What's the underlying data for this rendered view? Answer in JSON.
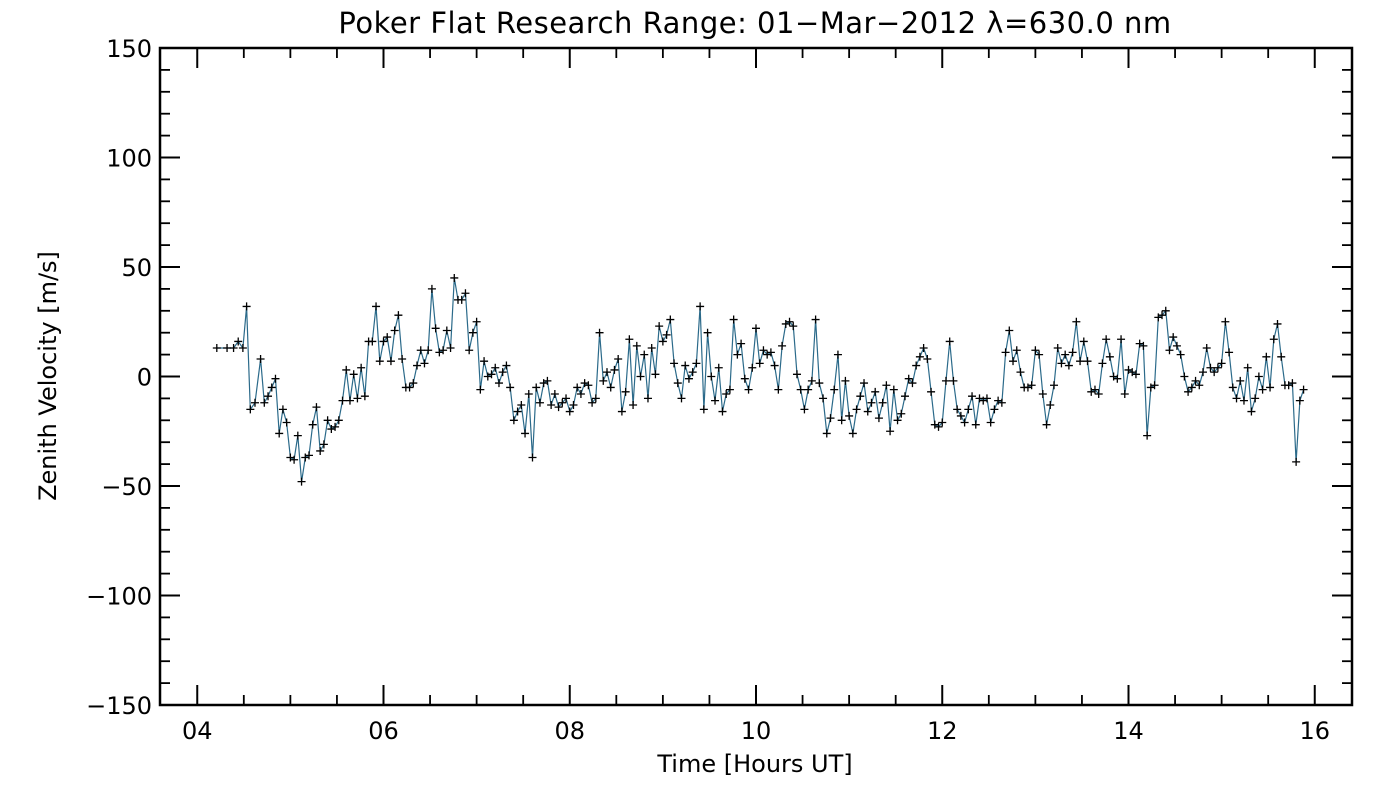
{
  "chart_data": {
    "type": "line",
    "title": "Poker Flat Research Range: 01−Mar−2012 λ=630.0 nm",
    "xlabel": "Time [Hours UT]",
    "ylabel": "Zenith Velocity [m/s]",
    "xlim": [
      3.6,
      16.4
    ],
    "ylim": [
      -150,
      150
    ],
    "xticks": [
      4,
      6,
      8,
      10,
      12,
      14,
      16
    ],
    "xtick_labels": [
      "04",
      "06",
      "08",
      "10",
      "12",
      "14",
      "16"
    ],
    "yticks": [
      -150,
      -100,
      -50,
      0,
      50,
      100,
      150
    ],
    "ytick_labels": [
      "−150",
      "−100",
      "−50",
      "0",
      "50",
      "100",
      "150"
    ],
    "grid": false,
    "line_color": "#2b6a8a",
    "marker": "plus",
    "marker_color": "#000000",
    "series": [
      {
        "x": [
          4.21,
          4.32,
          4.39,
          4.44,
          4.49,
          4.53,
          4.57,
          4.62,
          4.68,
          4.72,
          4.76,
          4.8,
          4.84,
          4.88,
          4.92,
          4.96,
          5.0,
          5.04,
          5.08,
          5.12,
          5.16,
          5.2,
          5.24,
          5.28,
          5.32,
          5.36,
          5.4,
          5.44,
          5.48,
          5.52,
          5.56,
          5.6,
          5.64,
          5.68,
          5.72,
          5.76,
          5.8,
          5.84,
          5.88,
          5.92,
          5.96,
          6.0,
          6.04,
          6.08,
          6.12,
          6.16,
          6.2,
          6.24,
          6.28,
          6.32,
          6.36,
          6.4,
          6.44,
          6.48,
          6.52,
          6.56,
          6.6,
          6.64,
          6.68,
          6.72,
          6.76,
          6.8,
          6.84,
          6.88,
          6.92,
          6.96,
          7.0,
          7.04,
          7.08,
          7.12,
          7.16,
          7.2,
          7.24,
          7.28,
          7.32,
          7.36,
          7.4,
          7.44,
          7.48,
          7.52,
          7.56,
          7.6,
          7.64,
          7.68,
          7.72,
          7.76,
          7.8,
          7.84,
          7.88,
          7.92,
          7.96,
          8.0,
          8.04,
          8.08,
          8.12,
          8.16,
          8.2,
          8.24,
          8.28,
          8.32,
          8.36,
          8.4,
          8.44,
          8.48,
          8.52,
          8.56,
          8.6,
          8.64,
          8.68,
          8.72,
          8.76,
          8.8,
          8.84,
          8.88,
          8.92,
          8.96,
          9.0,
          9.04,
          9.08,
          9.12,
          9.16,
          9.2,
          9.24,
          9.28,
          9.32,
          9.36,
          9.4,
          9.44,
          9.48,
          9.52,
          9.56,
          9.6,
          9.64,
          9.68,
          9.72,
          9.76,
          9.8,
          9.84,
          9.88,
          9.92,
          9.96,
          10.0,
          10.04,
          10.08,
          10.12,
          10.16,
          10.2,
          10.24,
          10.28,
          10.32,
          10.36,
          10.4,
          10.44,
          10.48,
          10.52,
          10.56,
          10.6,
          10.64,
          10.68,
          10.72,
          10.76,
          10.8,
          10.84,
          10.88,
          10.92,
          10.96,
          11.0,
          11.04,
          11.08,
          11.12,
          11.16,
          11.2,
          11.24,
          11.28,
          11.32,
          11.36,
          11.4,
          11.44,
          11.48,
          11.52,
          11.56,
          11.6,
          11.64,
          11.68,
          11.72,
          11.76,
          11.8,
          11.84,
          11.88,
          11.92,
          11.96,
          12.0,
          12.04,
          12.08,
          12.12,
          12.16,
          12.2,
          12.24,
          12.28,
          12.32,
          12.36,
          12.4,
          12.44,
          12.48,
          12.52,
          12.56,
          12.6,
          12.64,
          12.68,
          12.72,
          12.76,
          12.8,
          12.84,
          12.88,
          12.92,
          12.96,
          13.0,
          13.04,
          13.08,
          13.12,
          13.16,
          13.2,
          13.24,
          13.28,
          13.32,
          13.36,
          13.4,
          13.44,
          13.48,
          13.52,
          13.56,
          13.6,
          13.64,
          13.68,
          13.72,
          13.76,
          13.8,
          13.84,
          13.88,
          13.92,
          13.96,
          14.0,
          14.04,
          14.08,
          14.12,
          14.16,
          14.2,
          14.24,
          14.28,
          14.32,
          14.36,
          14.4,
          14.44,
          14.48,
          14.52,
          14.56,
          14.6,
          14.64,
          14.68,
          14.72,
          14.76,
          14.8,
          14.84,
          14.88,
          14.92,
          14.96,
          15.0,
          15.04,
          15.08,
          15.12,
          15.16,
          15.2,
          15.24,
          15.28,
          15.32,
          15.36,
          15.4,
          15.44,
          15.48,
          15.52,
          15.56,
          15.6,
          15.64,
          15.68,
          15.72,
          15.76,
          15.8,
          15.84,
          15.88
        ],
        "y": [
          13,
          13,
          13,
          16,
          13,
          32,
          -15,
          -12,
          8,
          -12,
          -9,
          -5,
          -1,
          -26,
          -15,
          -21,
          -37,
          -38,
          -27,
          -48,
          -37,
          -36,
          -22,
          -14,
          -34,
          -31,
          -20,
          -24,
          -23,
          -20,
          -11,
          3,
          -11,
          1,
          -10,
          4,
          -9,
          16,
          16,
          32,
          7,
          16,
          18,
          7,
          21,
          28,
          8,
          -5,
          -5,
          -3,
          5,
          12,
          6,
          12,
          40,
          22,
          11,
          12,
          21,
          13,
          45,
          35,
          35,
          38,
          12,
          20,
          25,
          -6,
          7,
          0,
          1,
          4,
          -3,
          2,
          5,
          -5,
          -20,
          -16,
          -13,
          -26,
          -8,
          -37,
          -5,
          -12,
          -3,
          -2,
          -13,
          -8,
          -14,
          -12,
          -10,
          -16,
          -13,
          -5,
          -8,
          -3,
          -4,
          -12,
          -10,
          20,
          -2,
          2,
          -5,
          3,
          8,
          -16,
          -7,
          17,
          -13,
          14,
          0,
          10,
          -10,
          13,
          1,
          23,
          16,
          19,
          26,
          6,
          -3,
          -10,
          5,
          -1,
          2,
          6,
          32,
          -15,
          20,
          0,
          -11,
          4,
          -16,
          -8,
          -6,
          26,
          10,
          15,
          -1,
          -6,
          4,
          22,
          6,
          12,
          10,
          11,
          5,
          -6,
          14,
          24,
          25,
          23,
          1,
          -6,
          -15,
          -6,
          -2,
          26,
          -3,
          -10,
          -26,
          -19,
          -6,
          10,
          -20,
          -2,
          -18,
          -26,
          -15,
          -9,
          -3,
          -16,
          -12,
          -7,
          -19,
          -12,
          -4,
          -25,
          -6,
          -20,
          -17,
          -9,
          -1,
          -3,
          5,
          9,
          13,
          8,
          -7,
          -22,
          -23,
          -21,
          -2,
          16,
          -2,
          -15,
          -18,
          -21,
          -15,
          -9,
          -22,
          -10,
          -11,
          -10,
          -21,
          -15,
          -11,
          -12,
          11,
          21,
          7,
          12,
          2,
          -5,
          -5,
          -4,
          12,
          10,
          -8,
          -22,
          -13,
          -4,
          13,
          6,
          10,
          5,
          11,
          25,
          7,
          16,
          7,
          -7,
          -6,
          -8,
          6,
          17,
          9,
          0,
          -1,
          17,
          -8,
          3,
          2,
          1,
          15,
          14,
          -27,
          -5,
          -4,
          27,
          28,
          30,
          12,
          18,
          14,
          10,
          0,
          -7,
          -5,
          -2,
          -4,
          2,
          13,
          4,
          2,
          4,
          6,
          25,
          11,
          -5,
          -10,
          -2,
          -11,
          4,
          -16,
          -10,
          0,
          -6,
          9,
          -5,
          17,
          24,
          9,
          -4,
          -4,
          -3,
          -39,
          -11,
          -6
        ]
      }
    ]
  }
}
